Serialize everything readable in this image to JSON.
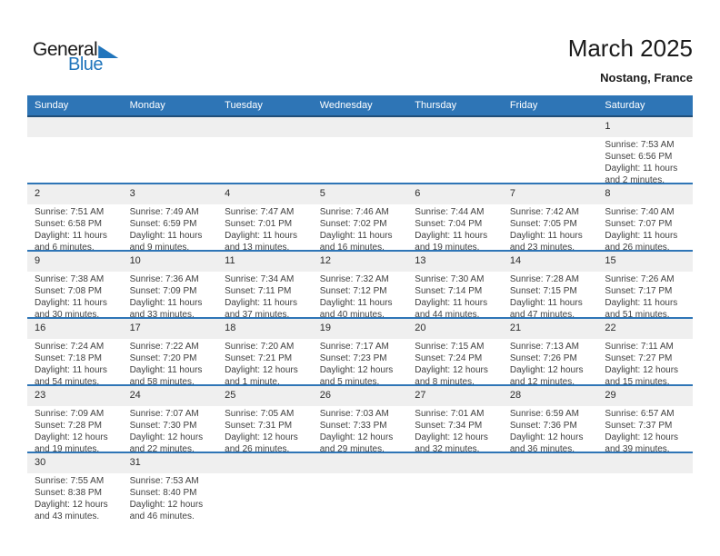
{
  "page": {
    "title": "March 2025",
    "subtitle": "Nostang, France"
  },
  "logo": {
    "part1": "General",
    "part2": "Blue",
    "triangle_icon": "blue-right-triangle"
  },
  "colors": {
    "header_bg": "#2E75B6",
    "header_text": "#FFFFFF",
    "header_border": "#1F4E79",
    "band_bg": "#EFEFEF",
    "separator": "#2E75B6",
    "cell_text": "#404040",
    "day_number": "#2B2B2B",
    "logo_blue": "#2175BC",
    "title_text": "#1A1A1A"
  },
  "calendar": {
    "weekdays": [
      "Sunday",
      "Monday",
      "Tuesday",
      "Wednesday",
      "Thursday",
      "Friday",
      "Saturday"
    ],
    "weeks": [
      [
        null,
        null,
        null,
        null,
        null,
        null,
        {
          "day": "1",
          "sunrise": "Sunrise: 7:53 AM",
          "sunset": "Sunset: 6:56 PM",
          "daylight": "Daylight: 11 hours and 2 minutes."
        }
      ],
      [
        {
          "day": "2",
          "sunrise": "Sunrise: 7:51 AM",
          "sunset": "Sunset: 6:58 PM",
          "daylight": "Daylight: 11 hours and 6 minutes."
        },
        {
          "day": "3",
          "sunrise": "Sunrise: 7:49 AM",
          "sunset": "Sunset: 6:59 PM",
          "daylight": "Daylight: 11 hours and 9 minutes."
        },
        {
          "day": "4",
          "sunrise": "Sunrise: 7:47 AM",
          "sunset": "Sunset: 7:01 PM",
          "daylight": "Daylight: 11 hours and 13 minutes."
        },
        {
          "day": "5",
          "sunrise": "Sunrise: 7:46 AM",
          "sunset": "Sunset: 7:02 PM",
          "daylight": "Daylight: 11 hours and 16 minutes."
        },
        {
          "day": "6",
          "sunrise": "Sunrise: 7:44 AM",
          "sunset": "Sunset: 7:04 PM",
          "daylight": "Daylight: 11 hours and 19 minutes."
        },
        {
          "day": "7",
          "sunrise": "Sunrise: 7:42 AM",
          "sunset": "Sunset: 7:05 PM",
          "daylight": "Daylight: 11 hours and 23 minutes."
        },
        {
          "day": "8",
          "sunrise": "Sunrise: 7:40 AM",
          "sunset": "Sunset: 7:07 PM",
          "daylight": "Daylight: 11 hours and 26 minutes."
        }
      ],
      [
        {
          "day": "9",
          "sunrise": "Sunrise: 7:38 AM",
          "sunset": "Sunset: 7:08 PM",
          "daylight": "Daylight: 11 hours and 30 minutes."
        },
        {
          "day": "10",
          "sunrise": "Sunrise: 7:36 AM",
          "sunset": "Sunset: 7:09 PM",
          "daylight": "Daylight: 11 hours and 33 minutes."
        },
        {
          "day": "11",
          "sunrise": "Sunrise: 7:34 AM",
          "sunset": "Sunset: 7:11 PM",
          "daylight": "Daylight: 11 hours and 37 minutes."
        },
        {
          "day": "12",
          "sunrise": "Sunrise: 7:32 AM",
          "sunset": "Sunset: 7:12 PM",
          "daylight": "Daylight: 11 hours and 40 minutes."
        },
        {
          "day": "13",
          "sunrise": "Sunrise: 7:30 AM",
          "sunset": "Sunset: 7:14 PM",
          "daylight": "Daylight: 11 hours and 44 minutes."
        },
        {
          "day": "14",
          "sunrise": "Sunrise: 7:28 AM",
          "sunset": "Sunset: 7:15 PM",
          "daylight": "Daylight: 11 hours and 47 minutes."
        },
        {
          "day": "15",
          "sunrise": "Sunrise: 7:26 AM",
          "sunset": "Sunset: 7:17 PM",
          "daylight": "Daylight: 11 hours and 51 minutes."
        }
      ],
      [
        {
          "day": "16",
          "sunrise": "Sunrise: 7:24 AM",
          "sunset": "Sunset: 7:18 PM",
          "daylight": "Daylight: 11 hours and 54 minutes."
        },
        {
          "day": "17",
          "sunrise": "Sunrise: 7:22 AM",
          "sunset": "Sunset: 7:20 PM",
          "daylight": "Daylight: 11 hours and 58 minutes."
        },
        {
          "day": "18",
          "sunrise": "Sunrise: 7:20 AM",
          "sunset": "Sunset: 7:21 PM",
          "daylight": "Daylight: 12 hours and 1 minute."
        },
        {
          "day": "19",
          "sunrise": "Sunrise: 7:17 AM",
          "sunset": "Sunset: 7:23 PM",
          "daylight": "Daylight: 12 hours and 5 minutes."
        },
        {
          "day": "20",
          "sunrise": "Sunrise: 7:15 AM",
          "sunset": "Sunset: 7:24 PM",
          "daylight": "Daylight: 12 hours and 8 minutes."
        },
        {
          "day": "21",
          "sunrise": "Sunrise: 7:13 AM",
          "sunset": "Sunset: 7:26 PM",
          "daylight": "Daylight: 12 hours and 12 minutes."
        },
        {
          "day": "22",
          "sunrise": "Sunrise: 7:11 AM",
          "sunset": "Sunset: 7:27 PM",
          "daylight": "Daylight: 12 hours and 15 minutes."
        }
      ],
      [
        {
          "day": "23",
          "sunrise": "Sunrise: 7:09 AM",
          "sunset": "Sunset: 7:28 PM",
          "daylight": "Daylight: 12 hours and 19 minutes."
        },
        {
          "day": "24",
          "sunrise": "Sunrise: 7:07 AM",
          "sunset": "Sunset: 7:30 PM",
          "daylight": "Daylight: 12 hours and 22 minutes."
        },
        {
          "day": "25",
          "sunrise": "Sunrise: 7:05 AM",
          "sunset": "Sunset: 7:31 PM",
          "daylight": "Daylight: 12 hours and 26 minutes."
        },
        {
          "day": "26",
          "sunrise": "Sunrise: 7:03 AM",
          "sunset": "Sunset: 7:33 PM",
          "daylight": "Daylight: 12 hours and 29 minutes."
        },
        {
          "day": "27",
          "sunrise": "Sunrise: 7:01 AM",
          "sunset": "Sunset: 7:34 PM",
          "daylight": "Daylight: 12 hours and 32 minutes."
        },
        {
          "day": "28",
          "sunrise": "Sunrise: 6:59 AM",
          "sunset": "Sunset: 7:36 PM",
          "daylight": "Daylight: 12 hours and 36 minutes."
        },
        {
          "day": "29",
          "sunrise": "Sunrise: 6:57 AM",
          "sunset": "Sunset: 7:37 PM",
          "daylight": "Daylight: 12 hours and 39 minutes."
        }
      ],
      [
        {
          "day": "30",
          "sunrise": "Sunrise: 7:55 AM",
          "sunset": "Sunset: 8:38 PM",
          "daylight": "Daylight: 12 hours and 43 minutes."
        },
        {
          "day": "31",
          "sunrise": "Sunrise: 7:53 AM",
          "sunset": "Sunset: 8:40 PM",
          "daylight": "Daylight: 12 hours and 46 minutes."
        },
        null,
        null,
        null,
        null,
        null
      ]
    ]
  }
}
